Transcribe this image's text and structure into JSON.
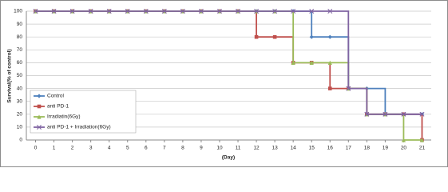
{
  "chart_data": {
    "type": "step-line",
    "y_label": "Survival(% of control)",
    "x_label": "(Day)",
    "x": [
      0,
      1,
      2,
      3,
      4,
      5,
      6,
      7,
      8,
      9,
      10,
      11,
      12,
      13,
      14,
      15,
      16,
      17,
      18,
      19,
      20,
      21
    ],
    "xlim": [
      -0.5,
      21.5
    ],
    "xticks": [
      0,
      1,
      2,
      3,
      4,
      5,
      6,
      7,
      8,
      9,
      10,
      11,
      12,
      13,
      14,
      15,
      16,
      17,
      18,
      19,
      20,
      21
    ],
    "ylim": [
      0,
      100
    ],
    "yticks": [
      0,
      10,
      20,
      30,
      40,
      50,
      60,
      70,
      80,
      90,
      100
    ],
    "grid": true,
    "series": [
      {
        "name": "Control",
        "color": "#4f81bd",
        "marker": "diamond",
        "values": [
          100,
          100,
          100,
          100,
          100,
          100,
          100,
          100,
          100,
          100,
          100,
          100,
          100,
          100,
          100,
          80,
          80,
          40,
          40,
          20,
          20,
          20
        ]
      },
      {
        "name": "anti PD-1",
        "color": "#c0504d",
        "marker": "square",
        "values": [
          100,
          100,
          100,
          100,
          100,
          100,
          100,
          100,
          100,
          100,
          100,
          100,
          80,
          80,
          60,
          60,
          40,
          40,
          20,
          20,
          20,
          0
        ]
      },
      {
        "name": "Irradiatin(6Gy)",
        "color": "#9bbb59",
        "marker": "triangle",
        "values": [
          100,
          100,
          100,
          100,
          100,
          100,
          100,
          100,
          100,
          100,
          100,
          100,
          100,
          100,
          60,
          60,
          60,
          40,
          20,
          20,
          0,
          0
        ]
      },
      {
        "name": "anti PD-1 + Irradiation(6Gy)",
        "color": "#8064a2",
        "marker": "x",
        "values": [
          100,
          100,
          100,
          100,
          100,
          100,
          100,
          100,
          100,
          100,
          100,
          100,
          100,
          100,
          100,
          100,
          100,
          40,
          20,
          20,
          20,
          20
        ]
      }
    ]
  }
}
